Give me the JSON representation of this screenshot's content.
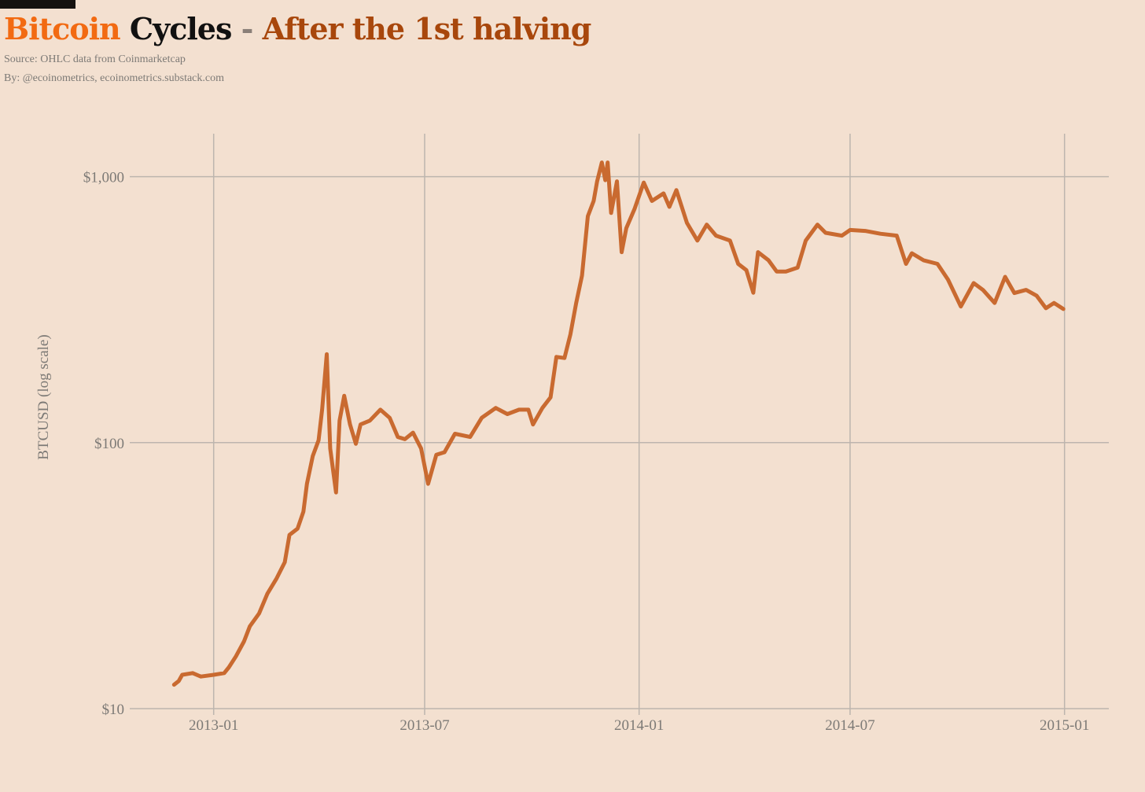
{
  "header": {
    "title_part1": "Bitcoin",
    "title_part2": "Cycles",
    "title_sep": "-",
    "title_part3": "After the 1st halving",
    "source": "Source: OHLC data from Coinmarketcap",
    "byline": "By: @ecoinometrics, ecoinometrics.substack.com"
  },
  "colors": {
    "background": "#f3e0d0",
    "line": "#c96a30",
    "title_orange": "#f26a12",
    "title_black": "#111111",
    "title_brown": "#a8470c",
    "grid": "#bdb5ae"
  },
  "chart_data": {
    "type": "line",
    "title": "",
    "xlabel": "",
    "ylabel": "BTCUSD (log scale)",
    "yscale": "log",
    "ylim": [
      10,
      1450
    ],
    "xlim": [
      "2012-10-21",
      "2015-02-08"
    ],
    "grid": true,
    "x_ticks": [
      "2013-01-01",
      "2013-07-01",
      "2014-01-01",
      "2014-07-01",
      "2015-01-01"
    ],
    "x_tick_labels": [
      "2013-01",
      "2013-07",
      "2014-01",
      "2014-07",
      "2015-01"
    ],
    "y_ticks": [
      10,
      100,
      1000
    ],
    "y_tick_labels": [
      "$10",
      "$100",
      "$1,000"
    ],
    "series": [
      {
        "points": [
          [
            "2012-11-28",
            12.3
          ],
          [
            "2012-12-02",
            12.7
          ],
          [
            "2012-12-05",
            13.4
          ],
          [
            "2012-12-14",
            13.6
          ],
          [
            "2012-12-21",
            13.2
          ],
          [
            "2013-01-01",
            13.4
          ],
          [
            "2013-01-10",
            13.6
          ],
          [
            "2013-01-14",
            14.3
          ],
          [
            "2013-01-20",
            15.7
          ],
          [
            "2013-01-27",
            17.9
          ],
          [
            "2013-02-01",
            20.4
          ],
          [
            "2013-02-09",
            22.8
          ],
          [
            "2013-02-16",
            27.0
          ],
          [
            "2013-02-24",
            30.9
          ],
          [
            "2013-03-03",
            35.5
          ],
          [
            "2013-03-07",
            45
          ],
          [
            "2013-03-14",
            47.5
          ],
          [
            "2013-03-19",
            55
          ],
          [
            "2013-03-22",
            70
          ],
          [
            "2013-03-27",
            89
          ],
          [
            "2013-04-01",
            102
          ],
          [
            "2013-04-04",
            133
          ],
          [
            "2013-04-08",
            215
          ],
          [
            "2013-04-11",
            95
          ],
          [
            "2013-04-16",
            65
          ],
          [
            "2013-04-19",
            121
          ],
          [
            "2013-04-23",
            150
          ],
          [
            "2013-04-28",
            117
          ],
          [
            "2013-05-03",
            99
          ],
          [
            "2013-05-07",
            117
          ],
          [
            "2013-05-15",
            121
          ],
          [
            "2013-05-24",
            133
          ],
          [
            "2013-06-01",
            124
          ],
          [
            "2013-06-08",
            105
          ],
          [
            "2013-06-14",
            103
          ],
          [
            "2013-06-21",
            109
          ],
          [
            "2013-06-28",
            95
          ],
          [
            "2013-07-04",
            70
          ],
          [
            "2013-07-11",
            90
          ],
          [
            "2013-07-18",
            92
          ],
          [
            "2013-07-27",
            108
          ],
          [
            "2013-08-09",
            105
          ],
          [
            "2013-08-19",
            124
          ],
          [
            "2013-08-31",
            135
          ],
          [
            "2013-09-10",
            128
          ],
          [
            "2013-09-20",
            133
          ],
          [
            "2013-09-28",
            133
          ],
          [
            "2013-10-02",
            117
          ],
          [
            "2013-10-10",
            135
          ],
          [
            "2013-10-17",
            148
          ],
          [
            "2013-10-22",
            210
          ],
          [
            "2013-10-29",
            208
          ],
          [
            "2013-11-03",
            255
          ],
          [
            "2013-11-08",
            335
          ],
          [
            "2013-11-13",
            425
          ],
          [
            "2013-11-18",
            710
          ],
          [
            "2013-11-23",
            810
          ],
          [
            "2013-11-26",
            960
          ],
          [
            "2013-11-30",
            1130
          ],
          [
            "2013-12-03",
            970
          ],
          [
            "2013-12-05",
            1130
          ],
          [
            "2013-12-08",
            730
          ],
          [
            "2013-12-13",
            960
          ],
          [
            "2013-12-17",
            520
          ],
          [
            "2013-12-21",
            640
          ],
          [
            "2013-12-28",
            755
          ],
          [
            "2014-01-05",
            950
          ],
          [
            "2014-01-12",
            810
          ],
          [
            "2014-01-22",
            865
          ],
          [
            "2014-01-27",
            770
          ],
          [
            "2014-02-02",
            890
          ],
          [
            "2014-02-11",
            670
          ],
          [
            "2014-02-20",
            575
          ],
          [
            "2014-02-28",
            660
          ],
          [
            "2014-03-08",
            600
          ],
          [
            "2014-03-20",
            575
          ],
          [
            "2014-03-27",
            470
          ],
          [
            "2014-04-03",
            445
          ],
          [
            "2014-04-09",
            366
          ],
          [
            "2014-04-13",
            520
          ],
          [
            "2014-04-22",
            485
          ],
          [
            "2014-04-29",
            440
          ],
          [
            "2014-05-07",
            440
          ],
          [
            "2014-05-17",
            455
          ],
          [
            "2014-05-24",
            575
          ],
          [
            "2014-06-03",
            660
          ],
          [
            "2014-06-10",
            615
          ],
          [
            "2014-06-24",
            600
          ],
          [
            "2014-07-01",
            630
          ],
          [
            "2014-07-14",
            625
          ],
          [
            "2014-07-27",
            610
          ],
          [
            "2014-08-10",
            600
          ],
          [
            "2014-08-18",
            470
          ],
          [
            "2014-08-23",
            515
          ],
          [
            "2014-09-02",
            485
          ],
          [
            "2014-09-14",
            470
          ],
          [
            "2014-09-23",
            410
          ],
          [
            "2014-10-04",
            325
          ],
          [
            "2014-10-15",
            398
          ],
          [
            "2014-10-23",
            375
          ],
          [
            "2014-11-02",
            335
          ],
          [
            "2014-11-11",
            420
          ],
          [
            "2014-11-19",
            365
          ],
          [
            "2014-11-29",
            375
          ],
          [
            "2014-12-08",
            357
          ],
          [
            "2014-12-16",
            320
          ],
          [
            "2014-12-23",
            335
          ],
          [
            "2014-12-31",
            318
          ]
        ]
      }
    ]
  }
}
